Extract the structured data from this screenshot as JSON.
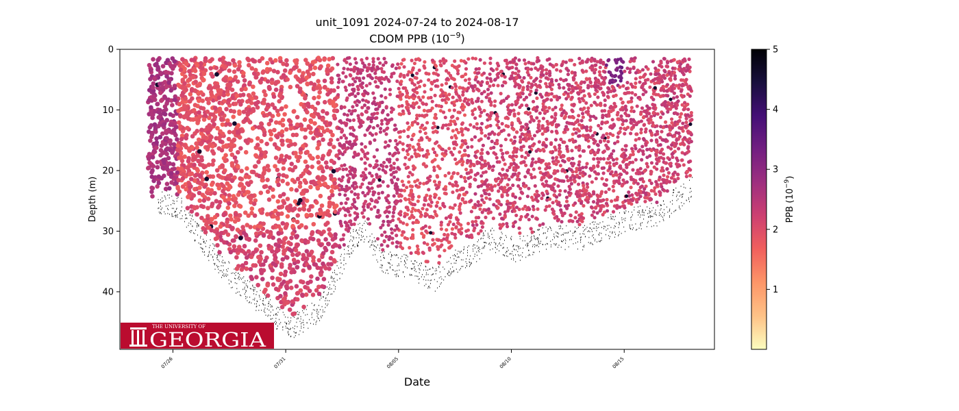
{
  "chart_data": {
    "type": "scatter",
    "title": "unit_1091 2024-07-24 to 2024-08-17",
    "subtitle_base": "CDOM PPB (10",
    "subtitle_exp": "−9",
    "subtitle_end": ")",
    "xlabel": "Date",
    "ylabel": "Depth (m)",
    "x_ticks": [
      "07/26",
      "07/31",
      "08/05",
      "08/10",
      "08/15"
    ],
    "x_tick_days": [
      2,
      7,
      12,
      17,
      22
    ],
    "xlim_days": [
      -0.35,
      26.0
    ],
    "ylim": [
      0,
      49.5
    ],
    "y_inverted": true,
    "y_ticks": [
      0,
      10,
      20,
      30,
      40
    ],
    "colorbar": {
      "label_base": "PPB (10",
      "label_exp": "−9",
      "label_end": ")",
      "min": 0,
      "max": 5,
      "ticks": [
        1,
        2,
        3,
        4,
        5
      ],
      "colormap": "magma_r",
      "colors": [
        "#fcfdbf",
        "#fec287",
        "#fd9668",
        "#f1605d",
        "#cd4071",
        "#9e2f7f",
        "#721f81",
        "#440f76",
        "#180f3d",
        "#000004"
      ]
    },
    "profile_envelope": {
      "description_days": [
        0.9,
        1.5,
        2.3,
        3.2,
        4.0,
        5.0,
        6.3,
        7.1,
        8.5,
        10.0,
        10.6,
        11.3,
        12.5,
        13.6,
        14.5,
        15.2,
        16.0,
        17.2,
        18.5,
        20.2,
        21.5,
        22.3,
        23.6,
        24.2,
        25.0
      ],
      "max_depth_m": [
        26,
        24,
        25,
        30,
        34,
        38,
        42,
        45,
        42,
        30,
        29,
        34,
        35,
        37,
        34,
        33,
        30,
        32,
        30,
        30,
        28,
        27,
        26,
        24,
        22
      ]
    }
  },
  "logo": {
    "line1": "THE UNIVERSITY OF",
    "line2": "GEORGIA",
    "color": "#ba0c2f"
  }
}
